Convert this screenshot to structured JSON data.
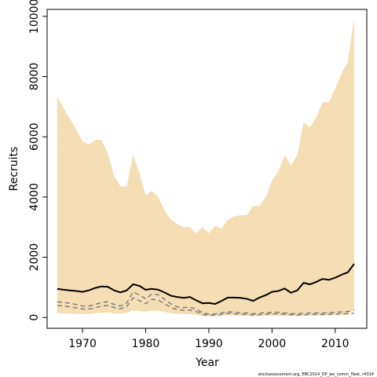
{
  "chart_data": {
    "type": "line",
    "xlabel": "Year",
    "ylabel": "Recruits",
    "footnote": "stockassessment.org, EBC2014_DP_wo_comm_fleet, r4314",
    "xlim": [
      1964.4,
      2015
    ],
    "ylim": [
      -360,
      10230
    ],
    "xticks": [
      1970,
      1980,
      1990,
      2000,
      2010
    ],
    "yticks": [
      0,
      2000,
      4000,
      6000,
      8000,
      10000
    ],
    "x": [
      1966,
      1967,
      1968,
      1969,
      1970,
      1971,
      1972,
      1973,
      1974,
      1975,
      1976,
      1977,
      1978,
      1979,
      1980,
      1981,
      1982,
      1983,
      1984,
      1985,
      1986,
      1987,
      1988,
      1989,
      1990,
      1991,
      1992,
      1993,
      1994,
      1995,
      1996,
      1997,
      1998,
      1999,
      2000,
      2001,
      2002,
      2003,
      2004,
      2005,
      2006,
      2007,
      2008,
      2009,
      2010,
      2011,
      2012,
      2013
    ],
    "band": {
      "color": "#f5deb3",
      "upper": [
        7350,
        6950,
        6600,
        6250,
        5850,
        5750,
        5900,
        5900,
        5450,
        4700,
        4350,
        4350,
        5400,
        4800,
        4050,
        4200,
        4000,
        3550,
        3250,
        3100,
        3000,
        3000,
        2800,
        3000,
        2800,
        3050,
        2950,
        3250,
        3350,
        3400,
        3400,
        3700,
        3700,
        4000,
        4550,
        4850,
        5400,
        5050,
        5400,
        6500,
        6300,
        6650,
        7150,
        7150,
        7600,
        8100,
        8500,
        9950
      ],
      "lower": [
        150,
        140,
        130,
        120,
        110,
        120,
        140,
        160,
        170,
        140,
        130,
        160,
        230,
        210,
        190,
        230,
        220,
        180,
        140,
        120,
        110,
        110,
        90,
        50,
        40,
        45,
        55,
        70,
        65,
        60,
        55,
        45,
        50,
        60,
        65,
        65,
        55,
        50,
        45,
        55,
        60,
        60,
        65,
        70,
        75,
        80,
        90,
        280
      ]
    },
    "series": [
      {
        "color": "#000000",
        "dashed": false,
        "values": [
          950,
          920,
          900,
          880,
          850,
          900,
          980,
          1030,
          1020,
          900,
          830,
          900,
          1100,
          1050,
          920,
          950,
          920,
          830,
          720,
          680,
          650,
          680,
          570,
          470,
          480,
          450,
          550,
          660,
          660,
          650,
          620,
          550,
          660,
          740,
          850,
          880,
          960,
          820,
          900,
          1150,
          1100,
          1180,
          1280,
          1250,
          1320,
          1420,
          1500,
          1780
        ]
      },
      {
        "color": "#808080",
        "dashed": true,
        "values": [
          520,
          500,
          470,
          430,
          380,
          380,
          430,
          500,
          520,
          430,
          380,
          480,
          850,
          750,
          620,
          780,
          760,
          600,
          450,
          350,
          330,
          340,
          280,
          150,
          110,
          120,
          150,
          190,
          170,
          160,
          150,
          120,
          140,
          160,
          170,
          170,
          150,
          130,
          120,
          140,
          150,
          150,
          150,
          160,
          170,
          180,
          200,
          230
        ]
      },
      {
        "color": "#808080",
        "dashed": true,
        "values": [
          400,
          380,
          350,
          320,
          280,
          280,
          320,
          380,
          400,
          330,
          290,
          360,
          650,
          560,
          460,
          600,
          580,
          450,
          330,
          260,
          240,
          250,
          200,
          100,
          70,
          80,
          100,
          140,
          120,
          110,
          100,
          80,
          90,
          110,
          120,
          120,
          100,
          90,
          80,
          90,
          100,
          100,
          100,
          110,
          110,
          120,
          130,
          140
        ]
      }
    ]
  }
}
